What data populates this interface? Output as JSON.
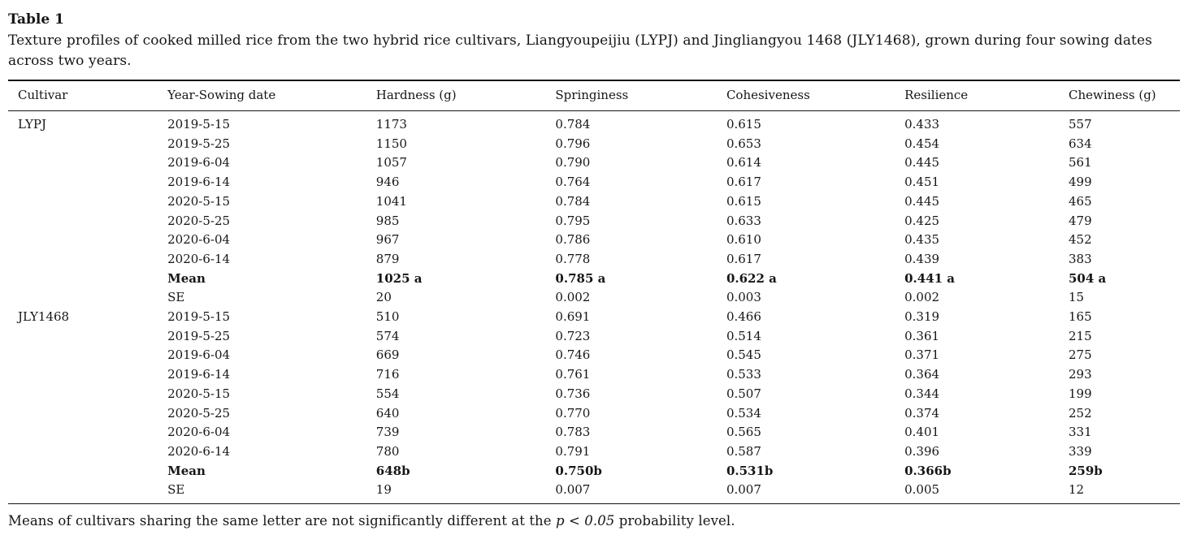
{
  "colors": {
    "text": "#161616",
    "background": "#ffffff"
  },
  "document": {
    "title": "Table 1",
    "caption": "Texture profiles of cooked milled rice from the two hybrid rice cultivars, Liangyoupeijiu (LYPJ) and Jingliangyou 1468 (JLY1468), grown during four sowing dates across two years.",
    "footnote": {
      "prefix": "Means of cultivars sharing the same letter are not significantly different at the ",
      "italic": "p < 0.05",
      "suffix": " probability level."
    }
  },
  "table": {
    "columns": [
      "Cultivar",
      "Year-Sowing date",
      "Hardness (g)",
      "Springiness",
      "Cohesiveness",
      "Resilience",
      "Chewiness (g)"
    ],
    "rows": [
      {
        "cultivar": "LYPJ",
        "label": "2019-5-15",
        "values": [
          "1173",
          "0.784",
          "0.615",
          "0.433",
          "557"
        ],
        "bold": false
      },
      {
        "cultivar": "",
        "label": "2019-5-25",
        "values": [
          "1150",
          "0.796",
          "0.653",
          "0.454",
          "634"
        ],
        "bold": false
      },
      {
        "cultivar": "",
        "label": "2019-6-04",
        "values": [
          "1057",
          "0.790",
          "0.614",
          "0.445",
          "561"
        ],
        "bold": false
      },
      {
        "cultivar": "",
        "label": "2019-6-14",
        "values": [
          "946",
          "0.764",
          "0.617",
          "0.451",
          "499"
        ],
        "bold": false
      },
      {
        "cultivar": "",
        "label": "2020-5-15",
        "values": [
          "1041",
          "0.784",
          "0.615",
          "0.445",
          "465"
        ],
        "bold": false
      },
      {
        "cultivar": "",
        "label": "2020-5-25",
        "values": [
          "985",
          "0.795",
          "0.633",
          "0.425",
          "479"
        ],
        "bold": false
      },
      {
        "cultivar": "",
        "label": "2020-6-04",
        "values": [
          "967",
          "0.786",
          "0.610",
          "0.435",
          "452"
        ],
        "bold": false
      },
      {
        "cultivar": "",
        "label": "2020-6-14",
        "values": [
          "879",
          "0.778",
          "0.617",
          "0.439",
          "383"
        ],
        "bold": false
      },
      {
        "cultivar": "",
        "label": "Mean",
        "values": [
          "1025 a",
          "0.785 a",
          "0.622 a",
          "0.441 a",
          "504 a"
        ],
        "bold": true
      },
      {
        "cultivar": "",
        "label": "SE",
        "values": [
          "20",
          "0.002",
          "0.003",
          "0.002",
          "15"
        ],
        "bold": false
      },
      {
        "cultivar": "JLY1468",
        "label": "2019-5-15",
        "values": [
          "510",
          "0.691",
          "0.466",
          "0.319",
          "165"
        ],
        "bold": false
      },
      {
        "cultivar": "",
        "label": "2019-5-25",
        "values": [
          "574",
          "0.723",
          "0.514",
          "0.361",
          "215"
        ],
        "bold": false
      },
      {
        "cultivar": "",
        "label": "2019-6-04",
        "values": [
          "669",
          "0.746",
          "0.545",
          "0.371",
          "275"
        ],
        "bold": false
      },
      {
        "cultivar": "",
        "label": "2019-6-14",
        "values": [
          "716",
          "0.761",
          "0.533",
          "0.364",
          "293"
        ],
        "bold": false
      },
      {
        "cultivar": "",
        "label": "2020-5-15",
        "values": [
          "554",
          "0.736",
          "0.507",
          "0.344",
          "199"
        ],
        "bold": false
      },
      {
        "cultivar": "",
        "label": "2020-5-25",
        "values": [
          "640",
          "0.770",
          "0.534",
          "0.374",
          "252"
        ],
        "bold": false
      },
      {
        "cultivar": "",
        "label": "2020-6-04",
        "values": [
          "739",
          "0.783",
          "0.565",
          "0.401",
          "331"
        ],
        "bold": false
      },
      {
        "cultivar": "",
        "label": "2020-6-14",
        "values": [
          "780",
          "0.791",
          "0.587",
          "0.396",
          "339"
        ],
        "bold": false
      },
      {
        "cultivar": "",
        "label": "Mean",
        "values": [
          "648b",
          "0.750b",
          "0.531b",
          "0.366b",
          "259b"
        ],
        "bold": true
      },
      {
        "cultivar": "",
        "label": "SE",
        "values": [
          "19",
          "0.007",
          "0.007",
          "0.005",
          "12"
        ],
        "bold": false
      }
    ]
  }
}
